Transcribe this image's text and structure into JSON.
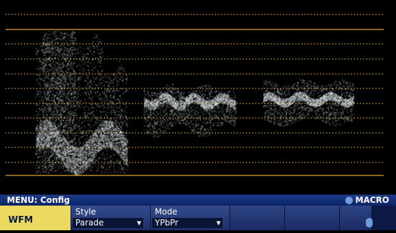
{
  "menu": {
    "title": "MENU: Config",
    "macro_label": "MACRO"
  },
  "softkeys": {
    "mode_key": "WFM",
    "style": {
      "label": "Style",
      "value": "Parade"
    },
    "mode": {
      "label": "Mode",
      "value": "YPbPr"
    }
  },
  "colors": {
    "graticule": "#e8a830",
    "trace": "#e6eef2",
    "menu_bar": "#142f7a",
    "highlight_key": "#ecd95f",
    "macro_dot": "#6f9be0"
  },
  "icons": [
    "dropdown-arrow-icon",
    "macro-indicator-icon"
  ]
}
